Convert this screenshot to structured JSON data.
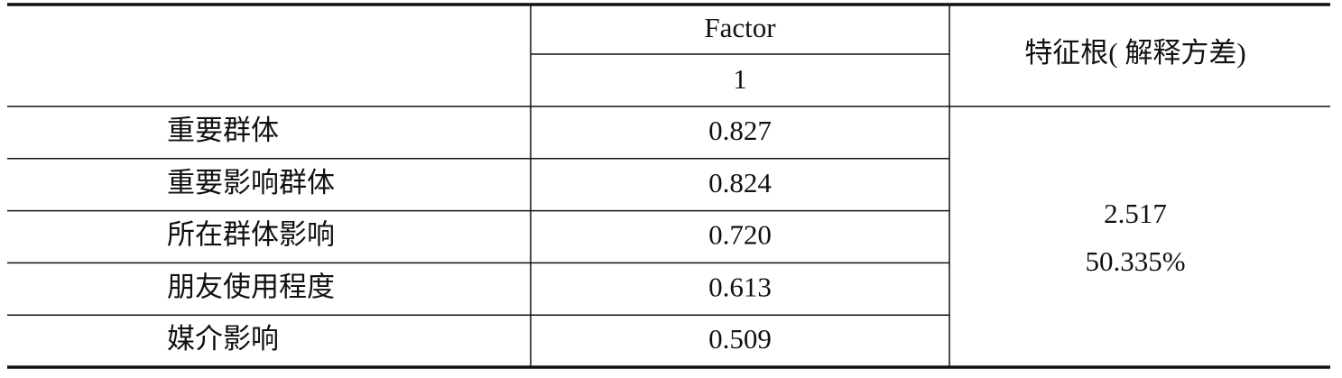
{
  "table": {
    "header": {
      "factor": "Factor",
      "factor_index": "1",
      "eigen": "特征根( 解释方差)"
    },
    "rows": [
      [
        "重要群体",
        "0.827"
      ],
      [
        "重要影响群体",
        "0.824"
      ],
      [
        "所在群体影响",
        "0.720"
      ],
      [
        "朋友使用程度",
        "0.613"
      ],
      [
        "媒介影响",
        "0.509"
      ]
    ],
    "eigenvalue": "2.517",
    "variance": "50.335%"
  }
}
